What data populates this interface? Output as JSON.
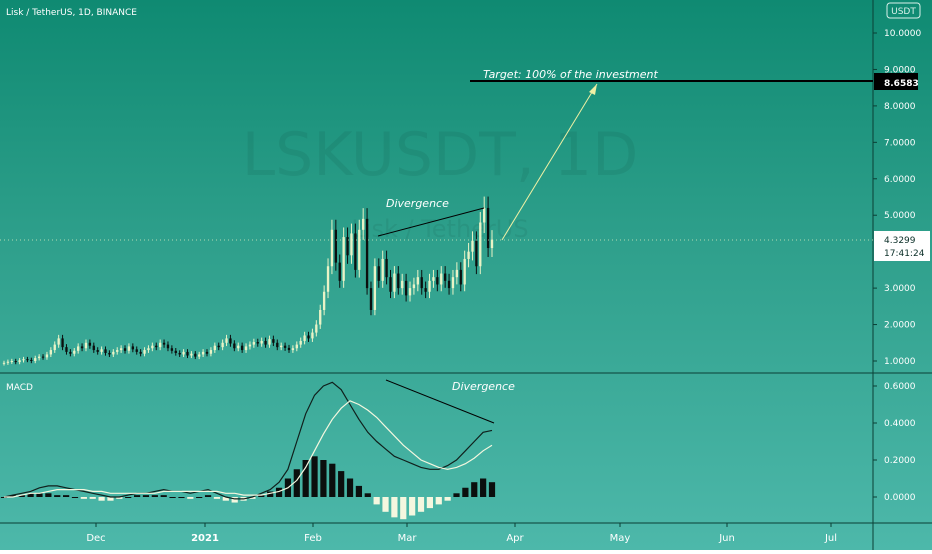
{
  "header": {
    "title": "Lisk / TetherUS, 1D, BINANCE",
    "currency_badge": "USDT"
  },
  "watermark": {
    "symbol": "LSKUSDT, 1D",
    "name": "Lisk / TetherUS"
  },
  "annotations": {
    "target": "Target: 100% of the investment",
    "divergence_price": "Divergence",
    "divergence_macd": "Divergence"
  },
  "price_axis": {
    "target_label": "8.6583",
    "last_label": "4.3299",
    "countdown": "17:41:24"
  },
  "macd_label": "MACD",
  "colors": {
    "bg_top": "#0f8a72",
    "bg_bottom": "#4db8aa",
    "candle_up": "#e9f3c6",
    "candle_down": "#0b0f0e",
    "macd_line": "#10201c",
    "signal_line": "#f4f7df",
    "arrow": "#eef0a4"
  },
  "chart_data": [
    {
      "type": "candlestick",
      "title": "Lisk / TetherUS, 1D, BINANCE",
      "x_labels": [
        "Dec",
        "2021",
        "Feb",
        "Mar",
        "Apr",
        "May",
        "Jun",
        "Jul"
      ],
      "y_ticks": [
        "10.0000",
        "9.0000",
        "8.0000",
        "7.0000",
        "6.0000",
        "5.0000",
        "3.0000",
        "2.0000",
        "1.0000"
      ],
      "ylim": [
        0.6,
        10.6
      ],
      "last_price": 4.3299,
      "target_price": 8.6583,
      "close": [
        0.95,
        0.98,
        1.0,
        0.97,
        1.02,
        1.05,
        1.03,
        1.0,
        1.08,
        1.12,
        1.1,
        1.18,
        1.3,
        1.45,
        1.62,
        1.38,
        1.25,
        1.2,
        1.28,
        1.4,
        1.35,
        1.5,
        1.42,
        1.3,
        1.25,
        1.32,
        1.22,
        1.18,
        1.25,
        1.3,
        1.35,
        1.28,
        1.4,
        1.32,
        1.25,
        1.2,
        1.3,
        1.35,
        1.42,
        1.38,
        1.5,
        1.45,
        1.35,
        1.28,
        1.22,
        1.18,
        1.25,
        1.15,
        1.2,
        1.12,
        1.18,
        1.25,
        1.2,
        1.3,
        1.42,
        1.38,
        1.5,
        1.62,
        1.48,
        1.35,
        1.42,
        1.3,
        1.4,
        1.45,
        1.52,
        1.48,
        1.55,
        1.45,
        1.6,
        1.5,
        1.38,
        1.42,
        1.36,
        1.3,
        1.35,
        1.45,
        1.55,
        1.7,
        1.62,
        1.78,
        2.0,
        2.4,
        2.9,
        3.6,
        4.6,
        3.7,
        3.2,
        4.4,
        3.9,
        4.5,
        3.5,
        4.6,
        4.9,
        3.0,
        2.4,
        3.6,
        3.2,
        3.8,
        3.3,
        2.9,
        3.4,
        3.0,
        3.2,
        2.8,
        3.0,
        3.1,
        3.3,
        3.0,
        2.9,
        3.2,
        3.3,
        3.1,
        3.4,
        3.2,
        3.0,
        3.3,
        3.5,
        3.1,
        3.8,
        4.0,
        4.3,
        3.6,
        4.8,
        5.2,
        4.1,
        4.33
      ],
      "x": [
        "2020-11-01",
        "2020-11-02",
        "2020-11-03",
        "2020-11-04",
        "2020-11-05",
        "2020-11-06",
        "2020-11-07",
        "2020-11-08",
        "2020-11-09",
        "2020-11-10",
        "2020-11-11",
        "2020-11-12",
        "2020-11-13",
        "2020-11-14",
        "2020-11-15",
        "2020-11-16",
        "2020-11-17",
        "2020-11-18",
        "2020-11-19",
        "2020-11-20",
        "2020-11-21",
        "2020-11-22",
        "2020-11-23",
        "2020-11-24",
        "2020-11-25",
        "2020-11-26",
        "2020-11-27",
        "2020-11-28",
        "2020-11-29",
        "2020-11-30",
        "2020-12-01",
        "2020-12-02",
        "2020-12-03",
        "2020-12-04",
        "2020-12-05",
        "2020-12-06",
        "2020-12-07",
        "2020-12-08",
        "2020-12-09",
        "2020-12-10",
        "2020-12-11",
        "2020-12-12",
        "2020-12-13",
        "2020-12-14",
        "2020-12-15",
        "2020-12-16",
        "2020-12-17",
        "2020-12-18",
        "2020-12-19",
        "2020-12-20",
        "2020-12-21",
        "2020-12-22",
        "2020-12-23",
        "2020-12-24",
        "2020-12-25",
        "2020-12-26",
        "2020-12-27",
        "2020-12-28",
        "2020-12-29",
        "2020-12-30",
        "2020-12-31",
        "2021-01-01",
        "2021-01-02",
        "2021-01-03",
        "2021-01-04",
        "2021-01-05",
        "2021-01-06",
        "2021-01-07",
        "2021-01-08",
        "2021-01-09",
        "2021-01-10",
        "2021-01-11",
        "2021-01-12",
        "2021-01-13",
        "2021-01-14",
        "2021-01-15",
        "2021-01-16",
        "2021-01-17",
        "2021-01-18",
        "2021-01-19",
        "2021-01-20",
        "2021-01-21",
        "2021-01-22",
        "2021-01-23",
        "2021-01-24",
        "2021-01-25",
        "2021-01-26",
        "2021-01-27",
        "2021-01-28",
        "2021-01-29",
        "2021-01-30",
        "2021-01-31",
        "2021-02-01",
        "2021-02-02",
        "2021-02-03",
        "2021-02-04",
        "2021-02-05",
        "2021-02-06",
        "2021-02-07",
        "2021-02-08",
        "2021-02-09",
        "2021-02-10",
        "2021-02-11",
        "2021-02-12",
        "2021-02-13",
        "2021-02-14",
        "2021-02-15",
        "2021-02-16",
        "2021-02-17",
        "2021-02-18",
        "2021-02-19",
        "2021-02-20",
        "2021-02-21",
        "2021-02-22",
        "2021-02-23",
        "2021-02-24",
        "2021-02-25",
        "2021-02-26",
        "2021-02-27",
        "2021-02-28",
        "2021-03-01",
        "2021-03-02",
        "2021-03-03",
        "2021-03-04",
        "2021-03-05",
        "2021-03-06"
      ]
    },
    {
      "type": "line",
      "title": "MACD",
      "y_ticks": [
        "0.6000",
        "0.4000",
        "0.2000",
        "0.0000"
      ],
      "ylim": [
        -0.13,
        0.66
      ],
      "series": [
        {
          "name": "MACD",
          "values": [
            0.0,
            0.01,
            0.02,
            0.03,
            0.05,
            0.06,
            0.06,
            0.05,
            0.04,
            0.03,
            0.02,
            0.01,
            0.0,
            0.0,
            0.01,
            0.02,
            0.02,
            0.03,
            0.04,
            0.03,
            0.03,
            0.02,
            0.03,
            0.04,
            0.02,
            0.0,
            -0.01,
            -0.01,
            0.0,
            0.02,
            0.04,
            0.08,
            0.15,
            0.3,
            0.45,
            0.55,
            0.6,
            0.62,
            0.58,
            0.5,
            0.42,
            0.35,
            0.3,
            0.26,
            0.22,
            0.2,
            0.18,
            0.16,
            0.15,
            0.15,
            0.17,
            0.2,
            0.25,
            0.3,
            0.35,
            0.36
          ]
        },
        {
          "name": "Signal",
          "values": [
            0.0,
            0.0,
            0.01,
            0.02,
            0.02,
            0.03,
            0.04,
            0.04,
            0.04,
            0.04,
            0.03,
            0.03,
            0.02,
            0.02,
            0.02,
            0.02,
            0.02,
            0.02,
            0.03,
            0.03,
            0.03,
            0.03,
            0.03,
            0.03,
            0.03,
            0.02,
            0.02,
            0.01,
            0.01,
            0.01,
            0.02,
            0.03,
            0.05,
            0.09,
            0.16,
            0.25,
            0.34,
            0.42,
            0.48,
            0.52,
            0.5,
            0.47,
            0.43,
            0.38,
            0.33,
            0.28,
            0.24,
            0.2,
            0.18,
            0.16,
            0.15,
            0.16,
            0.18,
            0.21,
            0.25,
            0.28
          ]
        }
      ],
      "histogram": [
        0.0,
        0.01,
        0.01,
        0.02,
        0.02,
        0.02,
        0.01,
        0.01,
        0.0,
        -0.01,
        -0.01,
        -0.02,
        -0.02,
        -0.01,
        0.0,
        0.01,
        0.01,
        0.01,
        0.01,
        0.0,
        0.0,
        -0.01,
        0.0,
        0.01,
        -0.01,
        -0.02,
        -0.03,
        -0.02,
        -0.01,
        0.01,
        0.03,
        0.05,
        0.1,
        0.15,
        0.2,
        0.22,
        0.2,
        0.18,
        0.14,
        0.1,
        0.06,
        0.02,
        -0.04,
        -0.08,
        -0.11,
        -0.12,
        -0.1,
        -0.08,
        -0.06,
        -0.04,
        -0.02,
        0.02,
        0.05,
        0.08,
        0.1,
        0.08
      ]
    }
  ]
}
